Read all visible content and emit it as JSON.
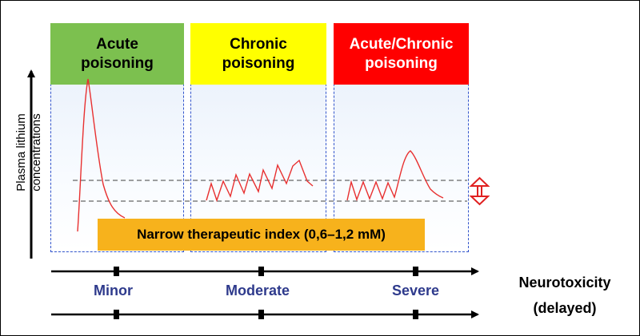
{
  "headers": [
    {
      "text": "Acute\npoisoning",
      "color": "#7cc04f"
    },
    {
      "text": "Chronic\npoisoning",
      "color": "#ffff00"
    },
    {
      "text": "Acute/Chronic\npoisoning",
      "color": "#ff0000"
    }
  ],
  "y_axis_label": "Plasma lithium\nconcentrations",
  "therapeutic_index": {
    "text": "Narrow therapeutic index (0,6–1,2 mM)",
    "color": "#f7b21c"
  },
  "severity": [
    "Minor",
    "Moderate",
    "Severe"
  ],
  "neurotoxicity": {
    "line1": "Neurotoxicity",
    "line2": "(delayed)"
  },
  "colors": {
    "curve": "#e83030",
    "panel_border": "#3355cc",
    "severity_text": "#2e3a8c"
  },
  "icons": {
    "range_indicator": "double-headed-arrow-icon"
  }
}
